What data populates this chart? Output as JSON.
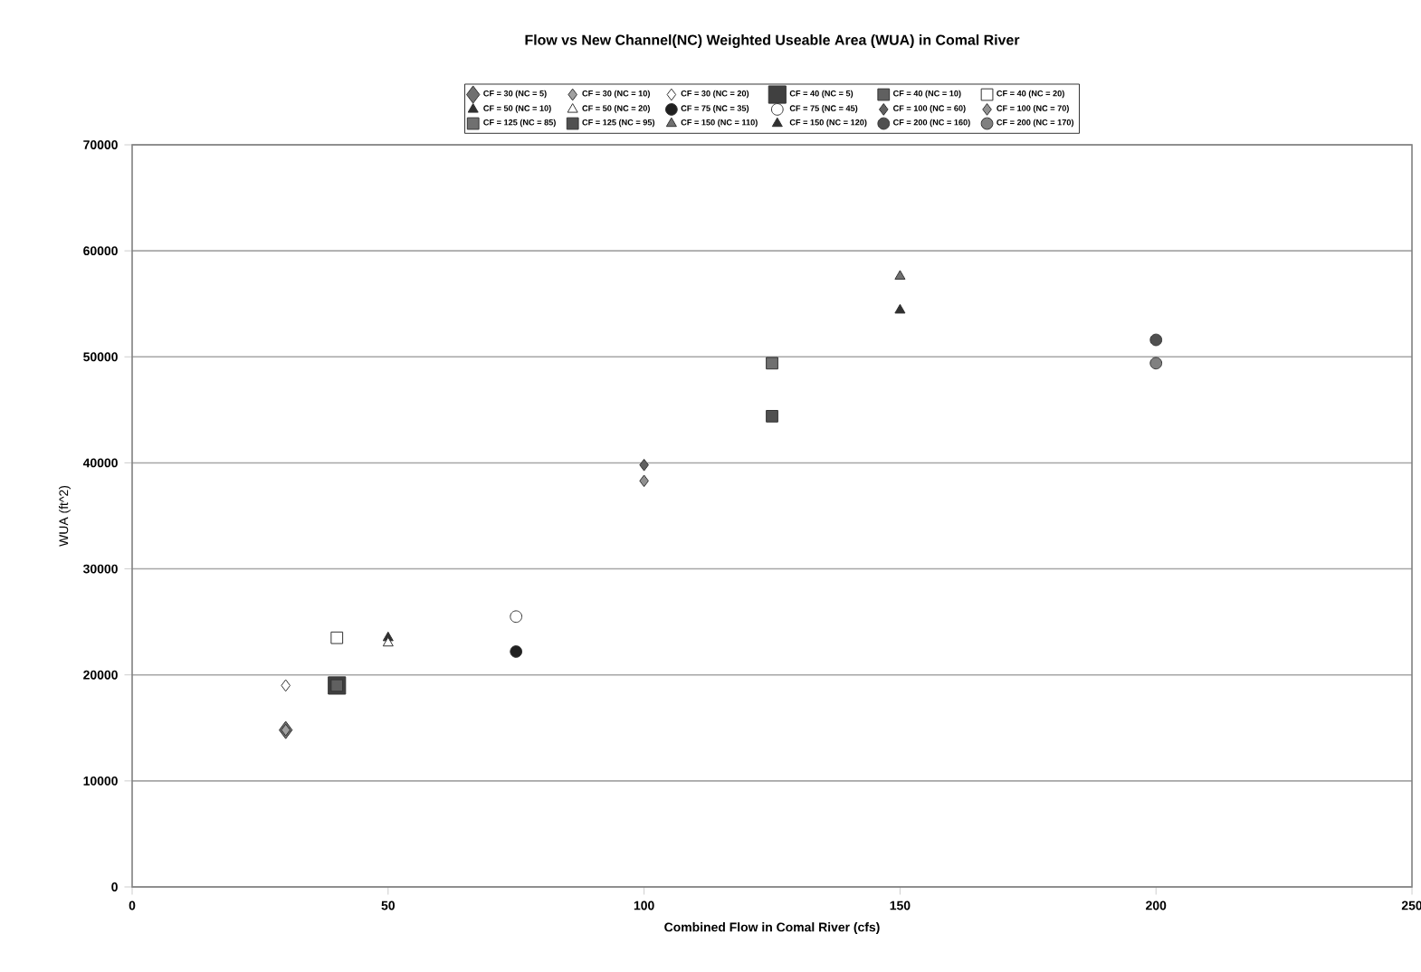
{
  "chart_data": {
    "type": "scatter",
    "title": "Flow vs New Channel(NC) Weighted Useable Area (WUA) in Comal River",
    "xlabel": "Combined Flow in Comal River (cfs)",
    "ylabel": "WUA (ft^2)",
    "xlim": [
      0,
      250
    ],
    "xticks": [
      0,
      50,
      100,
      150,
      200,
      250
    ],
    "ylim": [
      0,
      70000
    ],
    "yticks": [
      0,
      10000,
      20000,
      30000,
      40000,
      50000,
      60000,
      70000
    ],
    "grid": "y",
    "legend": "top",
    "series": [
      {
        "name": "CF = 30 (NC = 5)",
        "color": "#707070",
        "marker": "diamond",
        "x": [
          30
        ],
        "values": [
          14800
        ]
      },
      {
        "name": "CF = 30 (NC = 10)",
        "color": "#a0a0a0",
        "marker": "diamond",
        "x": [
          30
        ],
        "values": [
          14800
        ]
      },
      {
        "name": "CF = 30 (NC = 20)",
        "color": "#ffffff",
        "marker": "diamond",
        "x": [
          30
        ],
        "values": [
          19000
        ]
      },
      {
        "name": "CF = 40 (NC = 5)",
        "color": "#404040",
        "marker": "square",
        "x": [
          40
        ],
        "values": [
          19000
        ]
      },
      {
        "name": "CF = 40 (NC = 10)",
        "color": "#606060",
        "marker": "square",
        "x": [
          40
        ],
        "values": [
          19000
        ]
      },
      {
        "name": "CF = 40 (NC = 20)",
        "color": "#ffffff",
        "marker": "square",
        "x": [
          40
        ],
        "values": [
          23500
        ]
      },
      {
        "name": "CF = 50 (NC = 10)",
        "color": "#303030",
        "marker": "triangle",
        "x": [
          50
        ],
        "values": [
          23500
        ]
      },
      {
        "name": "CF = 50 (NC = 20)",
        "color": "#ffffff",
        "marker": "triangle",
        "x": [
          50
        ],
        "values": [
          23000
        ]
      },
      {
        "name": "CF = 75 (NC = 35)",
        "color": "#202020",
        "marker": "circle",
        "x": [
          75
        ],
        "values": [
          22200
        ]
      },
      {
        "name": "CF = 75 (NC = 45)",
        "color": "#ffffff",
        "marker": "circle",
        "x": [
          75
        ],
        "values": [
          25500
        ]
      },
      {
        "name": "CF = 100 (NC = 60)",
        "color": "#606060",
        "marker": "diamond",
        "x": [
          100
        ],
        "values": [
          39800
        ]
      },
      {
        "name": "CF = 100 (NC = 70)",
        "color": "#909090",
        "marker": "diamond",
        "x": [
          100
        ],
        "values": [
          38300
        ]
      },
      {
        "name": "CF = 125 (NC = 85)",
        "color": "#707070",
        "marker": "square",
        "x": [
          125
        ],
        "values": [
          49400
        ]
      },
      {
        "name": "CF = 125 (NC = 95)",
        "color": "#505050",
        "marker": "square",
        "x": [
          125
        ],
        "values": [
          44400
        ]
      },
      {
        "name": "CF = 150 (NC = 110)",
        "color": "#707070",
        "marker": "triangle",
        "x": [
          150
        ],
        "values": [
          57600
        ]
      },
      {
        "name": "CF = 150 (NC = 120)",
        "color": "#303030",
        "marker": "triangle",
        "x": [
          150
        ],
        "values": [
          54400
        ]
      },
      {
        "name": "CF = 200 (NC = 160)",
        "color": "#505050",
        "marker": "circle",
        "x": [
          200
        ],
        "values": [
          51600
        ]
      },
      {
        "name": "CF = 200 (NC = 170)",
        "color": "#808080",
        "marker": "circle",
        "x": [
          200
        ],
        "values": [
          49400
        ]
      }
    ]
  }
}
